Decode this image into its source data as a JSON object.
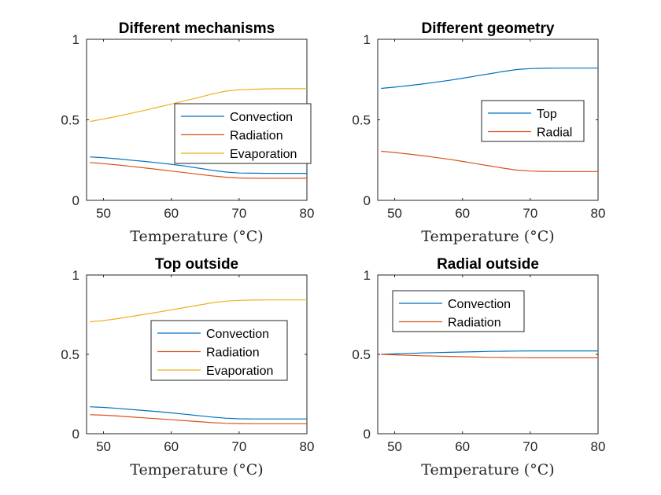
{
  "colors": {
    "blue": "#0072BD",
    "orange": "#D95319",
    "yellow": "#EDB120",
    "axis": "#262626"
  },
  "chart_data": [
    {
      "type": "line",
      "title": "Different mechanisms",
      "xlabel": "Temperature (°C)",
      "ylabel": "",
      "xlim": [
        47.5,
        80
      ],
      "ylim": [
        0,
        1
      ],
      "xticks": [
        50,
        60,
        70,
        80
      ],
      "yticks": [
        0,
        0.5,
        1
      ],
      "ytick_labels": [
        "0",
        "0.5",
        "1"
      ],
      "grid": false,
      "legend": "upper-right, inset",
      "x": [
        48,
        50,
        52,
        54,
        56,
        58,
        60,
        62,
        64,
        66,
        68,
        70,
        72,
        74,
        76,
        78,
        80
      ],
      "series": [
        {
          "name": "Convection",
          "color": "blue",
          "values": [
            0.27,
            0.265,
            0.258,
            0.25,
            0.242,
            0.233,
            0.224,
            0.213,
            0.2,
            0.187,
            0.176,
            0.17,
            0.169,
            0.168,
            0.168,
            0.168,
            0.168
          ]
        },
        {
          "name": "Radiation",
          "color": "orange",
          "values": [
            0.235,
            0.228,
            0.22,
            0.211,
            0.202,
            0.192,
            0.182,
            0.172,
            0.162,
            0.152,
            0.144,
            0.139,
            0.137,
            0.137,
            0.137,
            0.137,
            0.137
          ]
        },
        {
          "name": "Evaporation",
          "color": "yellow",
          "values": [
            0.49,
            0.505,
            0.522,
            0.54,
            0.558,
            0.578,
            0.598,
            0.618,
            0.638,
            0.66,
            0.678,
            0.687,
            0.69,
            0.692,
            0.693,
            0.693,
            0.693
          ]
        }
      ]
    },
    {
      "type": "line",
      "title": "Different geometry",
      "xlabel": "Temperature (°C)",
      "ylabel": "",
      "xlim": [
        47.5,
        80
      ],
      "ylim": [
        0,
        1
      ],
      "xticks": [
        50,
        60,
        70,
        80
      ],
      "yticks": [
        0,
        0.5,
        1
      ],
      "ytick_labels": [
        "0",
        "0.5",
        "1"
      ],
      "grid": false,
      "legend": "center-right, inset",
      "x": [
        48,
        50,
        52,
        54,
        56,
        58,
        60,
        62,
        64,
        66,
        68,
        70,
        72,
        74,
        76,
        78,
        80
      ],
      "series": [
        {
          "name": "Top",
          "color": "blue",
          "values": [
            0.695,
            0.703,
            0.712,
            0.722,
            0.733,
            0.745,
            0.758,
            0.772,
            0.786,
            0.8,
            0.812,
            0.818,
            0.82,
            0.821,
            0.821,
            0.821,
            0.821
          ]
        },
        {
          "name": "Radial",
          "color": "orange",
          "values": [
            0.305,
            0.297,
            0.288,
            0.278,
            0.267,
            0.255,
            0.242,
            0.228,
            0.214,
            0.2,
            0.188,
            0.182,
            0.18,
            0.179,
            0.179,
            0.179,
            0.179
          ]
        }
      ]
    },
    {
      "type": "line",
      "title": "Top outside",
      "xlabel": "Temperature (°C)",
      "ylabel": "",
      "xlim": [
        47.5,
        80
      ],
      "ylim": [
        0,
        1
      ],
      "xticks": [
        50,
        60,
        70,
        80
      ],
      "yticks": [
        0,
        0.5,
        1
      ],
      "ytick_labels": [
        "0",
        "0.5",
        "1"
      ],
      "grid": false,
      "legend": "center-right, inset",
      "x": [
        48,
        50,
        52,
        54,
        56,
        58,
        60,
        62,
        64,
        66,
        68,
        70,
        72,
        74,
        76,
        78,
        80
      ],
      "series": [
        {
          "name": "Convection",
          "color": "blue",
          "values": [
            0.17,
            0.166,
            0.16,
            0.153,
            0.146,
            0.139,
            0.131,
            0.123,
            0.114,
            0.105,
            0.098,
            0.094,
            0.093,
            0.093,
            0.093,
            0.093,
            0.093
          ]
        },
        {
          "name": "Radiation",
          "color": "orange",
          "values": [
            0.12,
            0.117,
            0.112,
            0.106,
            0.1,
            0.094,
            0.088,
            0.082,
            0.076,
            0.07,
            0.066,
            0.064,
            0.063,
            0.063,
            0.063,
            0.063,
            0.063
          ]
        },
        {
          "name": "Evaporation",
          "color": "yellow",
          "values": [
            0.705,
            0.713,
            0.725,
            0.738,
            0.752,
            0.766,
            0.78,
            0.795,
            0.81,
            0.825,
            0.835,
            0.84,
            0.842,
            0.843,
            0.843,
            0.843,
            0.843
          ]
        }
      ]
    },
    {
      "type": "line",
      "title": "Radial outside",
      "xlabel": "Temperature (°C)",
      "ylabel": "",
      "xlim": [
        47.5,
        80
      ],
      "ylim": [
        0,
        1
      ],
      "xticks": [
        50,
        60,
        70,
        80
      ],
      "yticks": [
        0,
        0.5,
        1
      ],
      "ytick_labels": [
        "0",
        "0.5",
        "1"
      ],
      "grid": false,
      "legend": "upper-left, inset",
      "x": [
        48,
        50,
        52,
        54,
        56,
        58,
        60,
        62,
        64,
        66,
        68,
        70,
        72,
        74,
        76,
        78,
        80
      ],
      "series": [
        {
          "name": "Convection",
          "color": "blue",
          "values": [
            0.5,
            0.503,
            0.506,
            0.509,
            0.511,
            0.513,
            0.515,
            0.517,
            0.519,
            0.52,
            0.521,
            0.522,
            0.522,
            0.522,
            0.522,
            0.522,
            0.522
          ]
        },
        {
          "name": "Radiation",
          "color": "orange",
          "values": [
            0.5,
            0.497,
            0.494,
            0.491,
            0.489,
            0.487,
            0.485,
            0.483,
            0.481,
            0.48,
            0.479,
            0.478,
            0.478,
            0.478,
            0.478,
            0.478,
            0.478
          ]
        }
      ]
    }
  ]
}
